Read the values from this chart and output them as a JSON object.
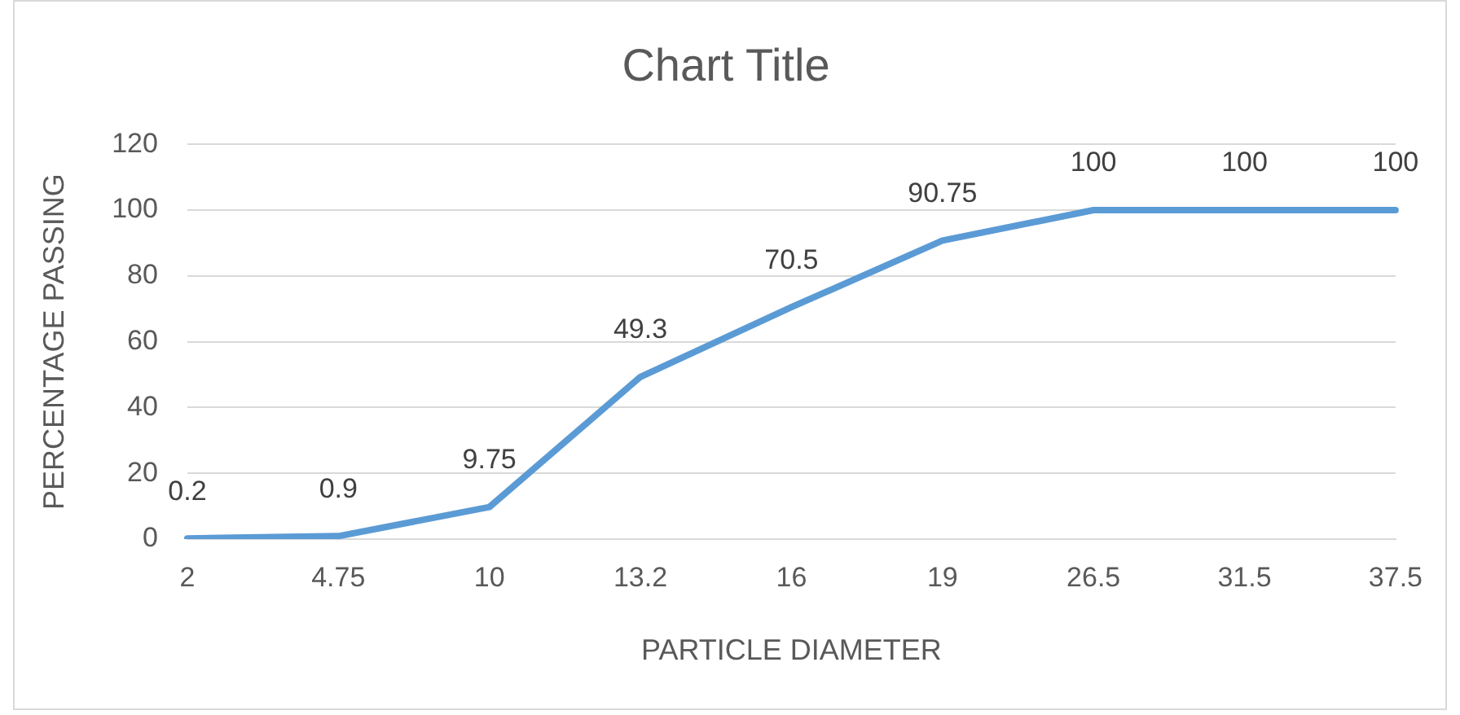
{
  "chart_data": {
    "type": "line",
    "title": "Chart Title",
    "xlabel": "PARTICLE DIAMETER",
    "ylabel": "PERCENTAGE PASSING",
    "categories": [
      "2",
      "4.75",
      "10",
      "13.2",
      "16",
      "19",
      "26.5",
      "31.5",
      "37.5"
    ],
    "values": [
      0.2,
      0.9,
      9.75,
      49.3,
      70.5,
      90.75,
      100,
      100,
      100
    ],
    "color": "#5b9bd5",
    "ylim": [
      0,
      120
    ],
    "yticks": [
      0,
      20,
      40,
      60,
      80,
      100,
      120
    ],
    "grid": "y",
    "legend": false,
    "marker": "none",
    "line_style": "solid",
    "data_labels": true
  }
}
